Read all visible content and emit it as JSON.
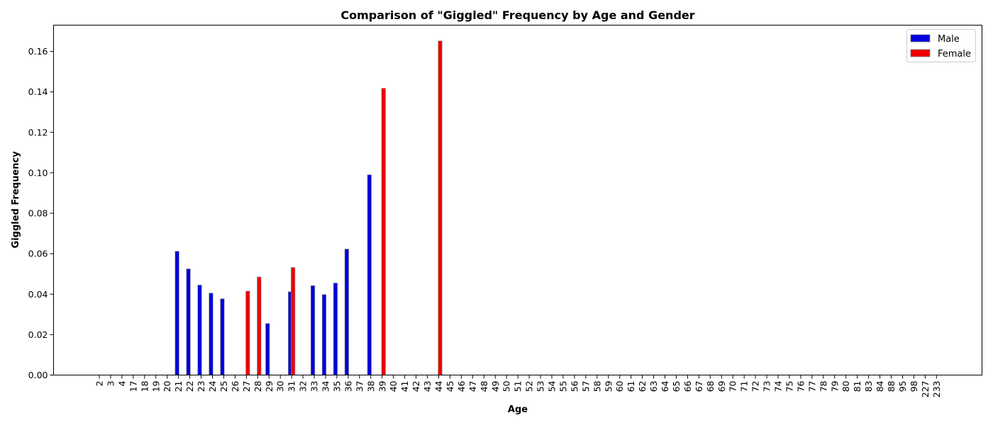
{
  "chart_data": {
    "type": "bar",
    "title": "Comparison of \"Giggled\" Frequency by Age and Gender",
    "xlabel": "Age",
    "ylabel": "Giggled Frequency",
    "ylim": [
      0,
      0.173
    ],
    "yticks": [
      "0.00",
      "0.02",
      "0.04",
      "0.06",
      "0.08",
      "0.10",
      "0.12",
      "0.14",
      "0.16"
    ],
    "grid": false,
    "legend_position": "top-right",
    "categories": [
      "2",
      "3",
      "4",
      "17",
      "18",
      "19",
      "20",
      "21",
      "22",
      "23",
      "24",
      "25",
      "26",
      "27",
      "28",
      "29",
      "30",
      "31",
      "32",
      "33",
      "34",
      "35",
      "36",
      "37",
      "38",
      "39",
      "40",
      "41",
      "42",
      "43",
      "44",
      "45",
      "46",
      "47",
      "48",
      "49",
      "50",
      "51",
      "52",
      "53",
      "54",
      "55",
      "56",
      "57",
      "58",
      "59",
      "60",
      "61",
      "62",
      "63",
      "64",
      "65",
      "66",
      "67",
      "68",
      "69",
      "70",
      "71",
      "72",
      "73",
      "74",
      "75",
      "76",
      "77",
      "78",
      "79",
      "80",
      "81",
      "83",
      "84",
      "88",
      "95",
      "98",
      "227",
      "233"
    ],
    "series": [
      {
        "name": "Male",
        "color": "#0000dd",
        "values": [
          0,
          0,
          0,
          0,
          0,
          0,
          0,
          0.0612,
          0.0525,
          0.0445,
          0.0405,
          0.0377,
          0,
          0,
          0,
          0.0255,
          0,
          0.0412,
          0,
          0.0442,
          0.0398,
          0.0455,
          0.0623,
          0,
          0.099,
          0,
          0,
          0,
          0,
          0,
          0,
          0,
          0,
          0,
          0,
          0,
          0,
          0,
          0,
          0,
          0,
          0,
          0,
          0,
          0,
          0,
          0,
          0,
          0,
          0,
          0,
          0,
          0,
          0,
          0,
          0,
          0,
          0,
          0,
          0,
          0,
          0,
          0,
          0,
          0,
          0,
          0,
          0,
          0,
          0,
          0,
          0,
          0,
          0,
          0
        ]
      },
      {
        "name": "Female",
        "color": "#ee0000",
        "values": [
          0,
          0,
          0,
          0,
          0,
          0,
          0,
          0,
          0,
          0,
          0,
          0,
          0,
          0.0415,
          0.0485,
          0,
          0,
          0.0532,
          0,
          0,
          0,
          0,
          0,
          0,
          0,
          0.1418,
          0,
          0,
          0,
          0,
          0.1652,
          0,
          0,
          0,
          0,
          0,
          0,
          0,
          0,
          0,
          0,
          0,
          0,
          0,
          0,
          0,
          0,
          0,
          0,
          0,
          0,
          0,
          0,
          0,
          0,
          0,
          0,
          0,
          0,
          0,
          0,
          0,
          0,
          0,
          0,
          0,
          0,
          0,
          0,
          0,
          0,
          0,
          0,
          0,
          0
        ]
      }
    ]
  }
}
